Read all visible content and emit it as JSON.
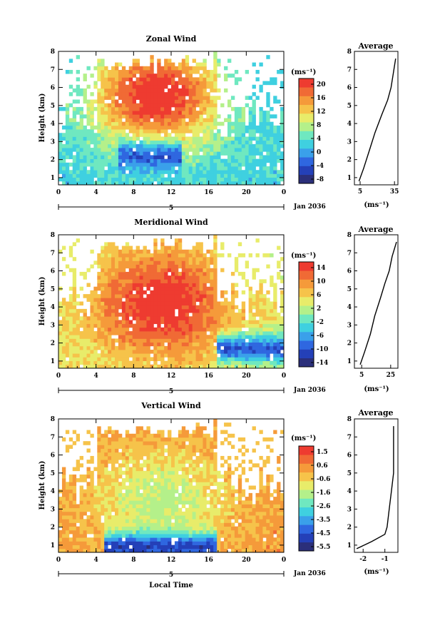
{
  "date_label": "Jan 2036",
  "x_axis_title": "Local Time",
  "x_day_marker": "5",
  "colors": {
    "palette": [
      "#2b2f7a",
      "#2440b8",
      "#2f67e0",
      "#3aa0ea",
      "#3fd0e0",
      "#6fe8c0",
      "#b4f08a",
      "#e8ec6a",
      "#f6c34a",
      "#f59a3a",
      "#f06a35",
      "#ee3b30"
    ]
  },
  "chart_data": [
    {
      "type": "heatmap",
      "title": "Zonal Wind",
      "ylabel": "Height (km)",
      "x_ticks": [
        "0",
        "4",
        "8",
        "12",
        "16",
        "20",
        "0"
      ],
      "y_ticks": [
        "1",
        "2",
        "3",
        "4",
        "5",
        "6",
        "7",
        "8"
      ],
      "xlim": [
        0,
        24
      ],
      "ylim": [
        0.6,
        8
      ],
      "colorbar": {
        "unit": "(ms⁻¹)",
        "ticks": [
          "20",
          "16",
          "12",
          "8",
          "4",
          "0",
          "-4",
          "-8"
        ],
        "min": -10,
        "max": 22
      },
      "field": {
        "surface": 2,
        "jet_height": 5.6,
        "jet_center_hour": 10.5,
        "jet_peak": 22,
        "low_core": -6,
        "low_height": 2.2,
        "low_start_hour": 6.5,
        "low_end_hour": 13
      },
      "profile": {
        "title": "Average",
        "xlabel": "(ms⁻¹)",
        "x_ticks": [
          "5",
          "35"
        ],
        "xlim": [
          0,
          38
        ],
        "heights": [
          0.8,
          1.5,
          2.5,
          3.5,
          4.5,
          5.3,
          6.0,
          6.8,
          7.6
        ],
        "values": [
          4,
          8,
          13,
          18,
          24,
          29,
          32,
          34,
          36
        ]
      }
    },
    {
      "type": "heatmap",
      "title": "Meridional Wind",
      "ylabel": "Height (km)",
      "x_ticks": [
        "0",
        "4",
        "8",
        "12",
        "16",
        "20",
        "0"
      ],
      "y_ticks": [
        "1",
        "2",
        "3",
        "4",
        "5",
        "6",
        "7",
        "8"
      ],
      "xlim": [
        0,
        24
      ],
      "ylim": [
        0.6,
        8
      ],
      "colorbar": {
        "unit": "(ms⁻¹)",
        "ticks": [
          "14",
          "10",
          "6",
          "2",
          "-2",
          "-6",
          "-10",
          "-14"
        ],
        "min": -16,
        "max": 16
      },
      "field": {
        "surface": 4,
        "jet_height": 4.2,
        "jet_center_hour": 11,
        "jet_peak": 16,
        "low_core": -13,
        "low_height": 1.7,
        "low_start_hour": 17,
        "low_end_hour": 24
      },
      "profile": {
        "title": "Average",
        "xlabel": "(ms⁻¹)",
        "x_ticks": [
          "5",
          "25"
        ],
        "xlim": [
          0,
          30
        ],
        "heights": [
          0.8,
          1.5,
          2.5,
          3.5,
          4.5,
          5.3,
          6.0,
          6.8,
          7.6
        ],
        "values": [
          4,
          7,
          11,
          14,
          18,
          21,
          24,
          26,
          29
        ]
      }
    },
    {
      "type": "heatmap",
      "title": "Vertical Wind",
      "ylabel": "Height (km)",
      "x_ticks": [
        "0",
        "4",
        "8",
        "12",
        "16",
        "20",
        "0"
      ],
      "y_ticks": [
        "1",
        "2",
        "3",
        "4",
        "5",
        "6",
        "7",
        "8"
      ],
      "xlim": [
        0,
        24
      ],
      "ylim": [
        0.6,
        8
      ],
      "colorbar": {
        "unit": "(ms⁻¹)",
        "ticks": [
          "1.5",
          "0.6",
          "-0.6",
          "-1.6",
          "-2.6",
          "-3.5",
          "-4.5",
          "-5.5"
        ],
        "min": -6,
        "max": 2
      },
      "field": {
        "surface": 0.3,
        "jet_height": 3.5,
        "jet_center_hour": 11,
        "jet_peak": -1.6,
        "low_core": -5.8,
        "low_height": 0.9,
        "low_start_hour": 5,
        "low_end_hour": 17
      },
      "profile": {
        "title": "Average",
        "xlabel": "(ms⁻¹)",
        "x_ticks": [
          "-2",
          "-1"
        ],
        "xlim": [
          -2.4,
          -0.4
        ],
        "heights": [
          0.8,
          1.2,
          1.6,
          2.0,
          3.0,
          4.0,
          5.0,
          6.0,
          7.0,
          7.6
        ],
        "values": [
          -2.3,
          -1.6,
          -1.0,
          -0.9,
          -0.8,
          -0.7,
          -0.6,
          -0.6,
          -0.6,
          -0.6
        ]
      }
    }
  ]
}
